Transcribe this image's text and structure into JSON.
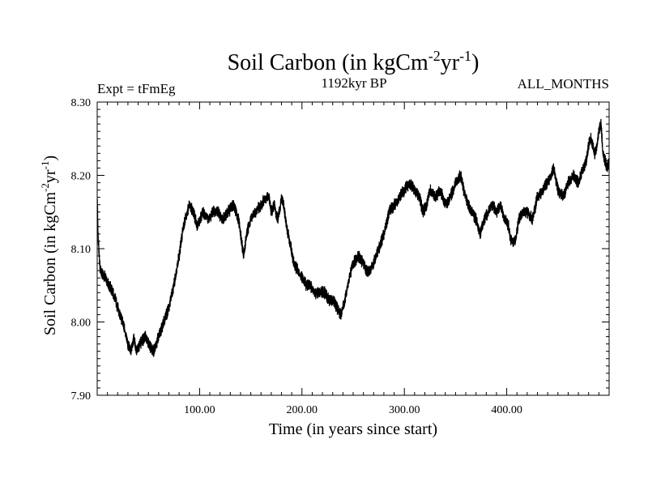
{
  "chart_data": {
    "type": "line",
    "title": "Soil Carbon (in kgCm",
    "title_sup1": "-2",
    "title_mid": "yr",
    "title_sup2": "-1",
    "title_end": ")",
    "subtitle_left": "Expt = tFmEg",
    "subtitle_center": "1192kyr BP",
    "subtitle_right": "ALL_MONTHS",
    "xlabel": "Time (in years since start)",
    "ylabel": "Soil Carbon (in kgCm",
    "ylabel_sup1": "-2",
    "ylabel_mid": "yr",
    "ylabel_sup2": "-1",
    "ylabel_end": ")",
    "xlim": [
      0,
      500
    ],
    "ylim": [
      7.9,
      8.3
    ],
    "x_ticks": [
      100,
      200,
      300,
      400
    ],
    "x_tick_labels": [
      "100.00",
      "200.00",
      "300.00",
      "400.00"
    ],
    "y_ticks": [
      7.9,
      8.0,
      8.1,
      8.2,
      8.3
    ],
    "y_tick_labels": [
      "7.90",
      "8.00",
      "8.10",
      "8.20",
      "8.30"
    ],
    "grid": false,
    "line_color": "#000000",
    "series": [
      {
        "name": "Soil Carbon",
        "noise_amplitude": 0.006,
        "samples_per_year": 12,
        "x": [
          0,
          1,
          3,
          8,
          12,
          15,
          18,
          22,
          27,
          30,
          33,
          36,
          38,
          42,
          47,
          50,
          55,
          60,
          65,
          70,
          75,
          80,
          84,
          88,
          90,
          94,
          98,
          103,
          108,
          113,
          118,
          123,
          128,
          133,
          138,
          141,
          143,
          146,
          150,
          155,
          160,
          165,
          168,
          170,
          173,
          176,
          178,
          180,
          182,
          185,
          188,
          192,
          196,
          200,
          204,
          208,
          212,
          218,
          222,
          226,
          230,
          234,
          238,
          242,
          246,
          250,
          255,
          260,
          263,
          266,
          270,
          275,
          280,
          285,
          290,
          295,
          300,
          305,
          310,
          315,
          318,
          322,
          325,
          330,
          335,
          340,
          345,
          350,
          355,
          358,
          362,
          366,
          370,
          374,
          378,
          382,
          386,
          390,
          394,
          398,
          402,
          404,
          408,
          412,
          416,
          420,
          425,
          430,
          435,
          440,
          443,
          446,
          450,
          455,
          460,
          465,
          470,
          475,
          478,
          480,
          482,
          484,
          486,
          488,
          490,
          492,
          494,
          496,
          498,
          500
        ],
        "y": [
          8.17,
          8.11,
          8.07,
          8.06,
          8.05,
          8.04,
          8.03,
          8.01,
          7.99,
          7.97,
          7.96,
          7.98,
          7.96,
          7.97,
          7.98,
          7.97,
          7.96,
          7.98,
          8.0,
          8.02,
          8.05,
          8.09,
          8.13,
          8.15,
          8.16,
          8.15,
          8.13,
          8.15,
          8.14,
          8.15,
          8.15,
          8.14,
          8.15,
          8.16,
          8.14,
          8.11,
          8.09,
          8.12,
          8.14,
          8.15,
          8.16,
          8.17,
          8.17,
          8.15,
          8.16,
          8.14,
          8.15,
          8.17,
          8.16,
          8.13,
          8.11,
          8.08,
          8.07,
          8.06,
          8.05,
          8.05,
          8.04,
          8.04,
          8.04,
          8.03,
          8.03,
          8.02,
          8.01,
          8.03,
          8.06,
          8.08,
          8.09,
          8.08,
          8.07,
          8.07,
          8.08,
          8.1,
          8.12,
          8.15,
          8.16,
          8.17,
          8.18,
          8.19,
          8.18,
          8.17,
          8.15,
          8.16,
          8.18,
          8.17,
          8.18,
          8.16,
          8.17,
          8.19,
          8.2,
          8.18,
          8.16,
          8.15,
          8.14,
          8.12,
          8.14,
          8.15,
          8.16,
          8.15,
          8.16,
          8.14,
          8.13,
          8.11,
          8.11,
          8.14,
          8.15,
          8.15,
          8.14,
          8.17,
          8.18,
          8.19,
          8.2,
          8.21,
          8.18,
          8.17,
          8.19,
          8.2,
          8.19,
          8.21,
          8.22,
          8.24,
          8.25,
          8.24,
          8.23,
          8.24,
          8.26,
          8.27,
          8.23,
          8.22,
          8.21,
          8.22
        ]
      }
    ]
  }
}
